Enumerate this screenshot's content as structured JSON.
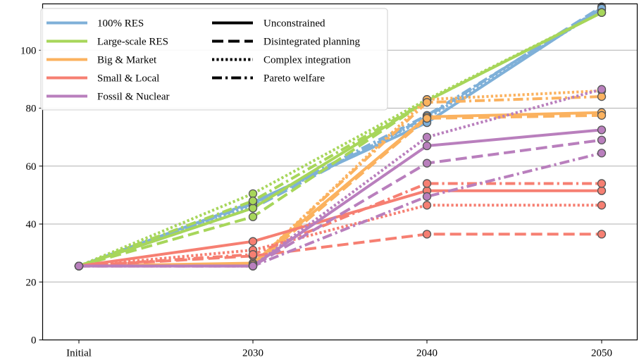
{
  "chart_data": {
    "type": "line",
    "title": "",
    "xlabel": "",
    "ylabel": "",
    "categories": [
      "Initial",
      "2030",
      "2040",
      "2050"
    ],
    "ylim": [
      0,
      116
    ],
    "yticks": [
      0,
      20,
      40,
      60,
      80,
      100
    ],
    "grid": "horizontal",
    "legend_placement": "top-left",
    "scenarios": [
      {
        "name": "100% RES",
        "color": "#7fb0d8"
      },
      {
        "name": "Large-scale RES",
        "color": "#a7d65a"
      },
      {
        "name": "Big & Market",
        "color": "#fbb25f"
      },
      {
        "name": "Small & Local",
        "color": "#f67f72"
      },
      {
        "name": "Fossil & Nuclear",
        "color": "#b97fbd"
      }
    ],
    "pathways": [
      {
        "name": "Unconstrained",
        "style": "solid"
      },
      {
        "name": "Disintegrated planning",
        "style": "dashed"
      },
      {
        "name": "Complex integration",
        "style": "dotted"
      },
      {
        "name": "Pareto welfare",
        "style": "dashdot"
      }
    ],
    "series": [
      {
        "scenario": "100% RES",
        "pathway": "Unconstrained",
        "values": [
          25.5,
          47.5,
          75.0,
          114.5
        ]
      },
      {
        "scenario": "100% RES",
        "pathway": "Disintegrated planning",
        "values": [
          25.5,
          45.5,
          77.0,
          115.0
        ]
      },
      {
        "scenario": "100% RES",
        "pathway": "Complex integration",
        "values": [
          25.5,
          46.5,
          76.5,
          114.0
        ]
      },
      {
        "scenario": "100% RES",
        "pathway": "Pareto welfare",
        "values": [
          25.5,
          47.0,
          77.5,
          114.5
        ]
      },
      {
        "scenario": "Large-scale RES",
        "pathway": "Unconstrained",
        "values": [
          25.5,
          45.5,
          82.5,
          113.0
        ]
      },
      {
        "scenario": "Large-scale RES",
        "pathway": "Disintegrated planning",
        "values": [
          25.5,
          42.5,
          82.5,
          113.0
        ]
      },
      {
        "scenario": "Large-scale RES",
        "pathway": "Complex integration",
        "values": [
          25.5,
          50.5,
          83.0,
          113.0
        ]
      },
      {
        "scenario": "Large-scale RES",
        "pathway": "Pareto welfare",
        "values": [
          25.5,
          48.0,
          82.5,
          113.0
        ]
      },
      {
        "scenario": "Big & Market",
        "pathway": "Unconstrained",
        "values": [
          25.5,
          26.5,
          77.0,
          78.5
        ]
      },
      {
        "scenario": "Big & Market",
        "pathway": "Disintegrated planning",
        "values": [
          25.5,
          25.5,
          76.5,
          77.5
        ]
      },
      {
        "scenario": "Big & Market",
        "pathway": "Complex integration",
        "values": [
          25.5,
          26.0,
          83.0,
          86.0
        ]
      },
      {
        "scenario": "Big & Market",
        "pathway": "Pareto welfare",
        "values": [
          25.5,
          26.0,
          82.0,
          84.0
        ]
      },
      {
        "scenario": "Small & Local",
        "pathway": "Unconstrained",
        "values": [
          25.5,
          34.0,
          51.5,
          51.5
        ]
      },
      {
        "scenario": "Small & Local",
        "pathway": "Disintegrated planning",
        "values": [
          25.5,
          29.0,
          36.5,
          36.5
        ]
      },
      {
        "scenario": "Small & Local",
        "pathway": "Complex integration",
        "values": [
          25.5,
          31.0,
          46.5,
          46.5
        ]
      },
      {
        "scenario": "Small & Local",
        "pathway": "Pareto welfare",
        "values": [
          25.5,
          29.5,
          54.0,
          54.0
        ]
      },
      {
        "scenario": "Fossil & Nuclear",
        "pathway": "Unconstrained",
        "values": [
          25.5,
          25.5,
          67.0,
          72.5
        ]
      },
      {
        "scenario": "Fossil & Nuclear",
        "pathway": "Disintegrated planning",
        "values": [
          25.5,
          25.5,
          61.0,
          69.0
        ]
      },
      {
        "scenario": "Fossil & Nuclear",
        "pathway": "Complex integration",
        "values": [
          25.5,
          25.5,
          70.0,
          86.5
        ]
      },
      {
        "scenario": "Fossil & Nuclear",
        "pathway": "Pareto welfare",
        "values": [
          25.5,
          25.5,
          49.5,
          64.5
        ]
      }
    ]
  }
}
